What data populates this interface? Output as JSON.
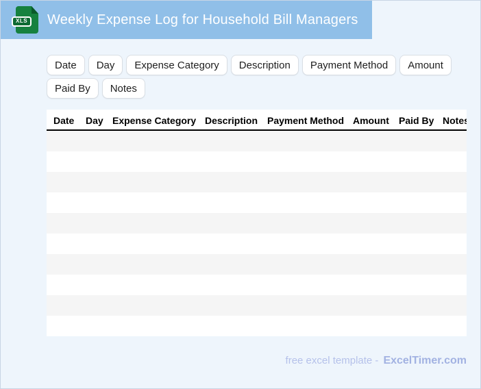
{
  "header": {
    "title": "Weekly Expense Log for Household Bill Managers",
    "file_icon": "xls-file-icon",
    "file_icon_label": "XLS"
  },
  "chips": [
    "Date",
    "Day",
    "Expense Category",
    "Description",
    "Payment Method",
    "Amount",
    "Paid By",
    "Notes"
  ],
  "table": {
    "columns": [
      "Date",
      "Day",
      "Expense Category",
      "Description",
      "Payment Method",
      "Amount",
      "Paid By",
      "Notes"
    ],
    "row_count": 10,
    "rows_empty": true
  },
  "footer": {
    "prefix": "free excel template -",
    "brand": "ExcelTimer.com"
  },
  "colors": {
    "banner": "#90BFE8",
    "background": "#EEF5FC",
    "stripe": "#F5F5F5",
    "icon_green": "#16813F",
    "footer_text": "#B5C1EA",
    "footer_brand": "#A2B2E2"
  }
}
